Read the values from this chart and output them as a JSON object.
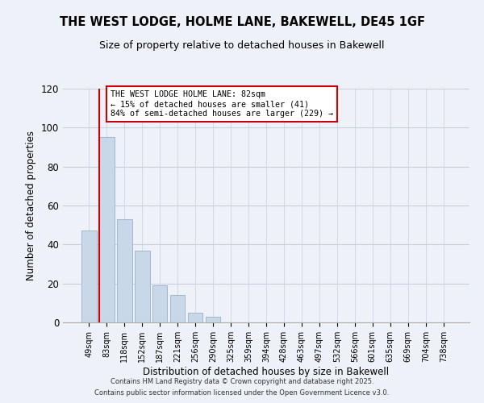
{
  "title": "THE WEST LODGE, HOLME LANE, BAKEWELL, DE45 1GF",
  "subtitle": "Size of property relative to detached houses in Bakewell",
  "xlabel": "Distribution of detached houses by size in Bakewell",
  "ylabel": "Number of detached properties",
  "bar_labels": [
    "49sqm",
    "83sqm",
    "118sqm",
    "152sqm",
    "187sqm",
    "221sqm",
    "256sqm",
    "290sqm",
    "325sqm",
    "359sqm",
    "394sqm",
    "428sqm",
    "463sqm",
    "497sqm",
    "532sqm",
    "566sqm",
    "601sqm",
    "635sqm",
    "669sqm",
    "704sqm",
    "738sqm"
  ],
  "bar_values": [
    47,
    95,
    53,
    37,
    19,
    14,
    5,
    3,
    0,
    0,
    0,
    0,
    0,
    0,
    0,
    0,
    0,
    0,
    0,
    0,
    0
  ],
  "bar_color": "#c8d8e8",
  "bar_edge_color": "#a0b8d0",
  "vline_color": "#cc0000",
  "annotation_text": "THE WEST LODGE HOLME LANE: 82sqm\n← 15% of detached houses are smaller (41)\n84% of semi-detached houses are larger (229) →",
  "annotation_box_color": "#ffffff",
  "annotation_box_edge": "#cc0000",
  "ylim": [
    0,
    120
  ],
  "yticks": [
    0,
    20,
    40,
    60,
    80,
    100,
    120
  ],
  "background_color": "#eef2f8",
  "grid_color": "#c8d0e0",
  "footer_line1": "Contains HM Land Registry data © Crown copyright and database right 2025.",
  "footer_line2": "Contains public sector information licensed under the Open Government Licence v3.0."
}
